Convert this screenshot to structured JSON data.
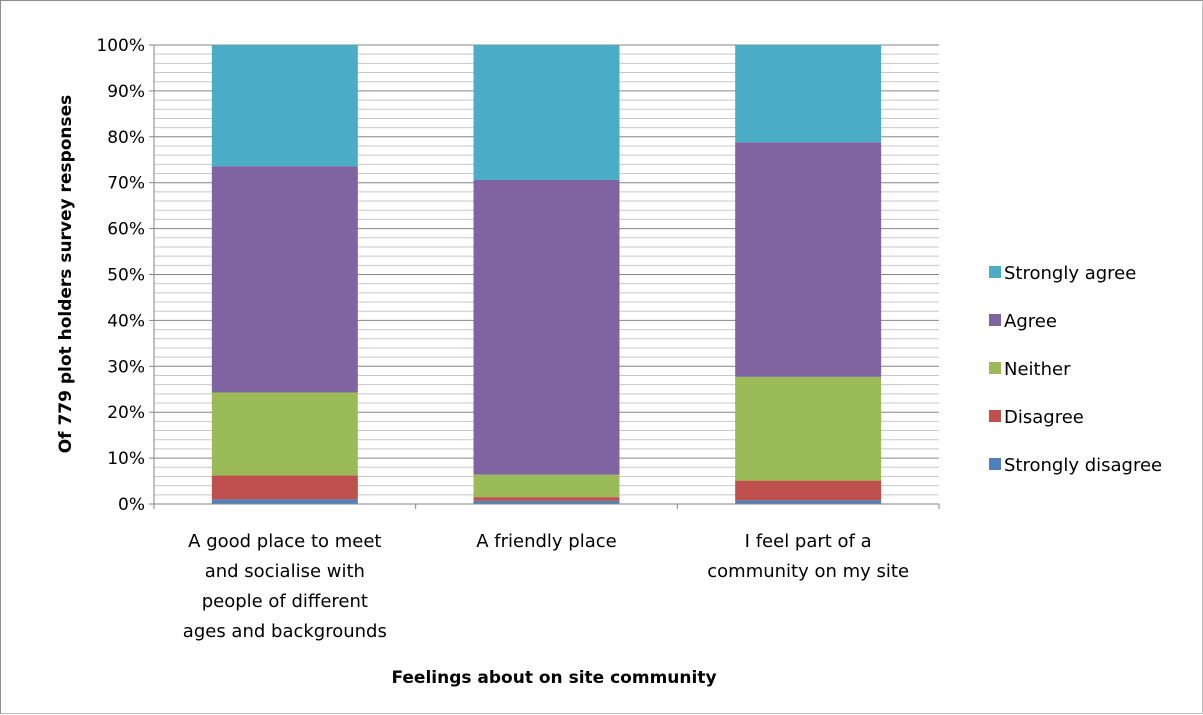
{
  "chart_data": {
    "type": "bar",
    "stacked": true,
    "percent_stacked": true,
    "xlabel": "Feelings about on site community",
    "ylabel": "Of 779 plot holders survey responses",
    "ylim": [
      0,
      100
    ],
    "yticks": [
      "0%",
      "10%",
      "20%",
      "30%",
      "40%",
      "50%",
      "60%",
      "70%",
      "80%",
      "90%",
      "100%"
    ],
    "grid": true,
    "legend_position": "right",
    "categories": [
      [
        "A good place to meet",
        "and socialise with",
        "people of different",
        "ages and backgrounds"
      ],
      [
        "A friendly place"
      ],
      [
        "I feel part of a",
        "community on my site"
      ]
    ],
    "series": [
      {
        "name": "Strongly disagree",
        "color": "#4f81bd",
        "values": [
          1.0,
          0.7,
          0.8
        ]
      },
      {
        "name": "Disagree",
        "color": "#c0504d",
        "values": [
          5.2,
          0.8,
          4.3
        ]
      },
      {
        "name": "Neither",
        "color": "#9bbb59",
        "values": [
          18.1,
          4.9,
          22.6
        ]
      },
      {
        "name": "Agree",
        "color": "#8064a2",
        "values": [
          49.3,
          64.2,
          51.1
        ]
      },
      {
        "name": "Strongly agree",
        "color": "#4bacc6",
        "values": [
          26.4,
          29.4,
          21.2
        ]
      }
    ]
  }
}
